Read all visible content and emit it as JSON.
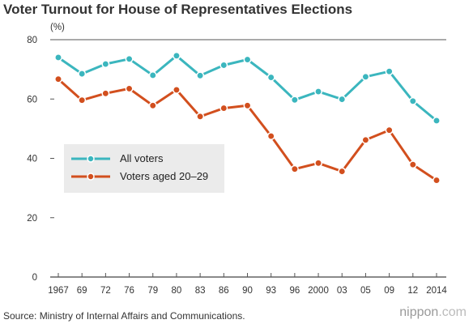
{
  "chart_data": {
    "type": "line",
    "title": "Voter Turnout for House of Representatives Elections",
    "ylabel": "(%)",
    "xlabel": "",
    "ylim": [
      0,
      80
    ],
    "yticks": [
      0,
      20,
      40,
      60,
      80
    ],
    "categories": [
      "1967",
      "69",
      "72",
      "76",
      "79",
      "80",
      "83",
      "86",
      "90",
      "93",
      "96",
      "2000",
      "03",
      "05",
      "09",
      "12",
      "2014"
    ],
    "series": [
      {
        "name": "All voters",
        "color": "#3bb6be",
        "values": [
          74.0,
          68.5,
          71.8,
          73.5,
          68.0,
          74.6,
          67.9,
          71.4,
          73.3,
          67.3,
          59.7,
          62.5,
          59.9,
          67.5,
          69.3,
          59.3,
          52.7
        ]
      },
      {
        "name": "Voters aged 20–29",
        "color": "#d24f1e",
        "values": [
          66.7,
          59.6,
          61.9,
          63.5,
          57.8,
          63.1,
          54.1,
          56.9,
          57.8,
          47.5,
          36.4,
          38.4,
          35.6,
          46.2,
          49.5,
          37.9,
          32.6
        ]
      }
    ],
    "grid": false,
    "legend_position": "center-left"
  },
  "footer": {
    "source": "Source: Ministry of Internal Affairs and Communications.",
    "brand_name": "nippon",
    "brand_suffix": ".com"
  }
}
